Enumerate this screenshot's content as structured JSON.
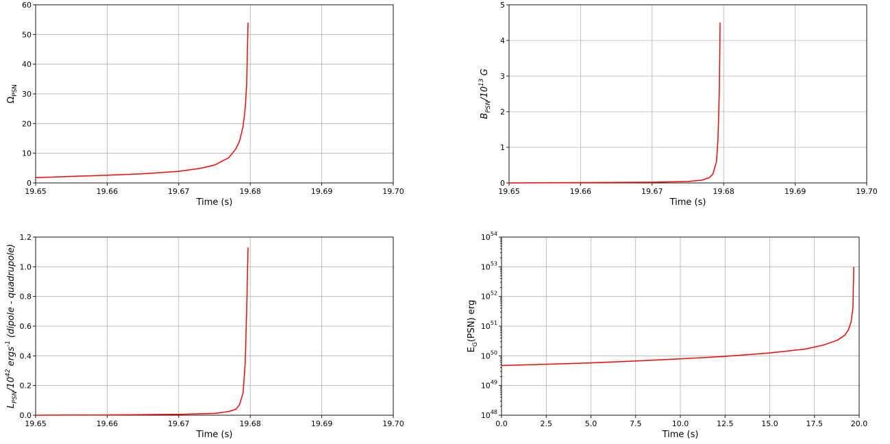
{
  "chart_data": [
    {
      "type": "line",
      "xlabel": "Time (s)",
      "ylabel": "Ω_PSN",
      "xlim": [
        19.65,
        19.7
      ],
      "ylim": [
        0,
        60
      ],
      "xticks": [
        "19.65",
        "19.66",
        "19.67",
        "19.68",
        "19.69",
        "19.70"
      ],
      "yticks": [
        "0",
        "10",
        "20",
        "30",
        "40",
        "50",
        "60"
      ],
      "grid": true,
      "series": [
        {
          "color": "#ff0000",
          "x": [
            19.65,
            19.655,
            19.66,
            19.665,
            19.67,
            19.673,
            19.675,
            19.677,
            19.678,
            19.6785,
            19.679,
            19.6793,
            19.6795,
            19.6797
          ],
          "y": [
            1.8,
            2.2,
            2.6,
            3.1,
            3.9,
            4.9,
            6.0,
            8.5,
            11.5,
            14.0,
            19.0,
            25.0,
            33.0,
            54.0
          ]
        }
      ]
    },
    {
      "type": "line",
      "xlabel": "Time (s)",
      "ylabel": "B_PSN/10^13 G",
      "xlim": [
        19.65,
        19.7
      ],
      "ylim": [
        0,
        5
      ],
      "xticks": [
        "19.65",
        "19.66",
        "19.67",
        "19.68",
        "19.69",
        "19.70"
      ],
      "yticks": [
        "0",
        "1",
        "2",
        "3",
        "4",
        "5"
      ],
      "grid": true,
      "series": [
        {
          "color": "#ff0000",
          "x": [
            19.65,
            19.66,
            19.67,
            19.675,
            19.677,
            19.678,
            19.6785,
            19.679,
            19.6792,
            19.6794,
            19.6795
          ],
          "y": [
            0.0,
            0.01,
            0.02,
            0.04,
            0.08,
            0.15,
            0.25,
            0.6,
            1.2,
            2.6,
            4.5
          ]
        }
      ]
    },
    {
      "type": "line",
      "xlabel": "Time (s)",
      "ylabel": "L_PSN/10^42 ergs^-1 (dipole - quadrupole)",
      "xlim": [
        19.65,
        19.7
      ],
      "ylim": [
        0,
        1.2
      ],
      "xticks": [
        "19.65",
        "19.66",
        "19.67",
        "19.68",
        "19.69",
        "19.70"
      ],
      "yticks": [
        "0.0",
        "0.2",
        "0.4",
        "0.6",
        "0.8",
        "1.0",
        "1.2"
      ],
      "grid": true,
      "series": [
        {
          "color": "#ff0000",
          "x": [
            19.65,
            19.66,
            19.67,
            19.675,
            19.677,
            19.678,
            19.6785,
            19.679,
            19.6793,
            19.6795,
            19.6797
          ],
          "y": [
            0.0,
            0.002,
            0.006,
            0.012,
            0.025,
            0.04,
            0.07,
            0.15,
            0.35,
            0.7,
            1.13
          ]
        }
      ]
    },
    {
      "type": "line",
      "xlabel": "Time (s)",
      "ylabel": "E_G(PSN) erg",
      "xlim": [
        0,
        20
      ],
      "ylim": [
        1e+48,
        1e+54
      ],
      "yscale": "log",
      "xticks": [
        "0.0",
        "2.5",
        "5.0",
        "7.5",
        "10.0",
        "12.5",
        "15.0",
        "17.5",
        "20.0"
      ],
      "yticks": [
        "10^48",
        "10^49",
        "10^50",
        "10^51",
        "10^52",
        "10^53",
        "10^54"
      ],
      "grid": true,
      "series": [
        {
          "color": "#ff0000",
          "x": [
            0,
            2.5,
            5,
            7.5,
            10,
            12.5,
            15,
            17,
            18,
            18.8,
            19.2,
            19.4,
            19.55,
            19.65,
            19.7
          ],
          "y": [
            4.7e+49,
            5.2e+49,
            5.8e+49,
            6.7e+49,
            7.9e+49,
            9.6e+49,
            1.25e+50,
            1.7e+50,
            2.3e+50,
            3.4e+50,
            5e+50,
            7.5e+50,
            1.4e+51,
            4e+51,
            1e+53
          ]
        }
      ]
    }
  ]
}
